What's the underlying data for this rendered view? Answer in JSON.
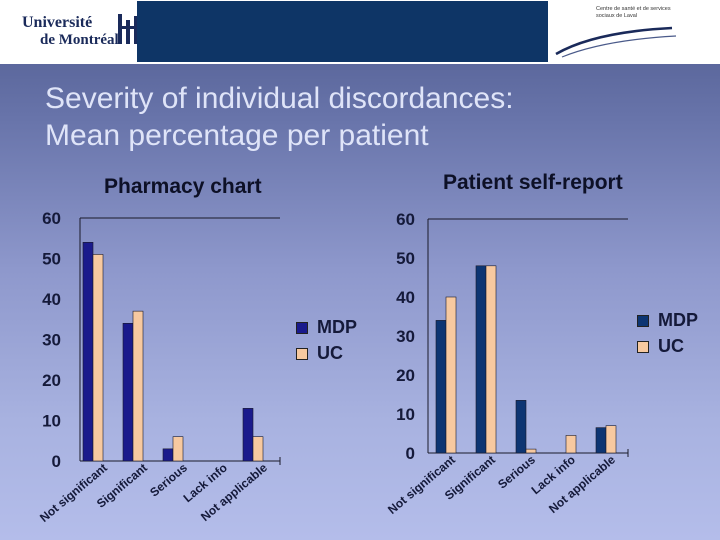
{
  "header": {
    "university_line1": "Université",
    "university_line2": "de Montréal",
    "partner_text": "Centre de santé et de services sociaux de Laval"
  },
  "slide": {
    "title_line1": "Severity of individual discordances:",
    "title_line2": "Mean percentage per patient"
  },
  "colors": {
    "mdp": "#1a1a8c",
    "mdp_right": "#0d3572",
    "uc": "#f7c9a0"
  },
  "chart_data": [
    {
      "type": "bar",
      "title": "Pharmacy chart",
      "categories": [
        "Not significant",
        "Significant",
        "Serious",
        "Lack info",
        "Not applicable"
      ],
      "series": [
        {
          "name": "MDP",
          "values": [
            54,
            34,
            3,
            0,
            13
          ]
        },
        {
          "name": "UC",
          "values": [
            51,
            37,
            6,
            0,
            6
          ]
        }
      ],
      "ylim": [
        0,
        60
      ],
      "yticks": [
        0,
        10,
        20,
        30,
        40,
        50,
        60
      ],
      "legend": "right",
      "grid": false
    },
    {
      "type": "bar",
      "title": "Patient self-report",
      "categories": [
        "Not significant",
        "Significant",
        "Serious",
        "Lack info",
        "Not applicable"
      ],
      "series": [
        {
          "name": "MDP",
          "values": [
            34,
            48,
            13.5,
            0,
            6.5
          ]
        },
        {
          "name": "UC",
          "values": [
            40,
            48,
            1,
            4.5,
            7
          ]
        }
      ],
      "ylim": [
        0,
        60
      ],
      "yticks": [
        0,
        10,
        20,
        30,
        40,
        50,
        60
      ],
      "legend": "right",
      "grid": false
    }
  ]
}
